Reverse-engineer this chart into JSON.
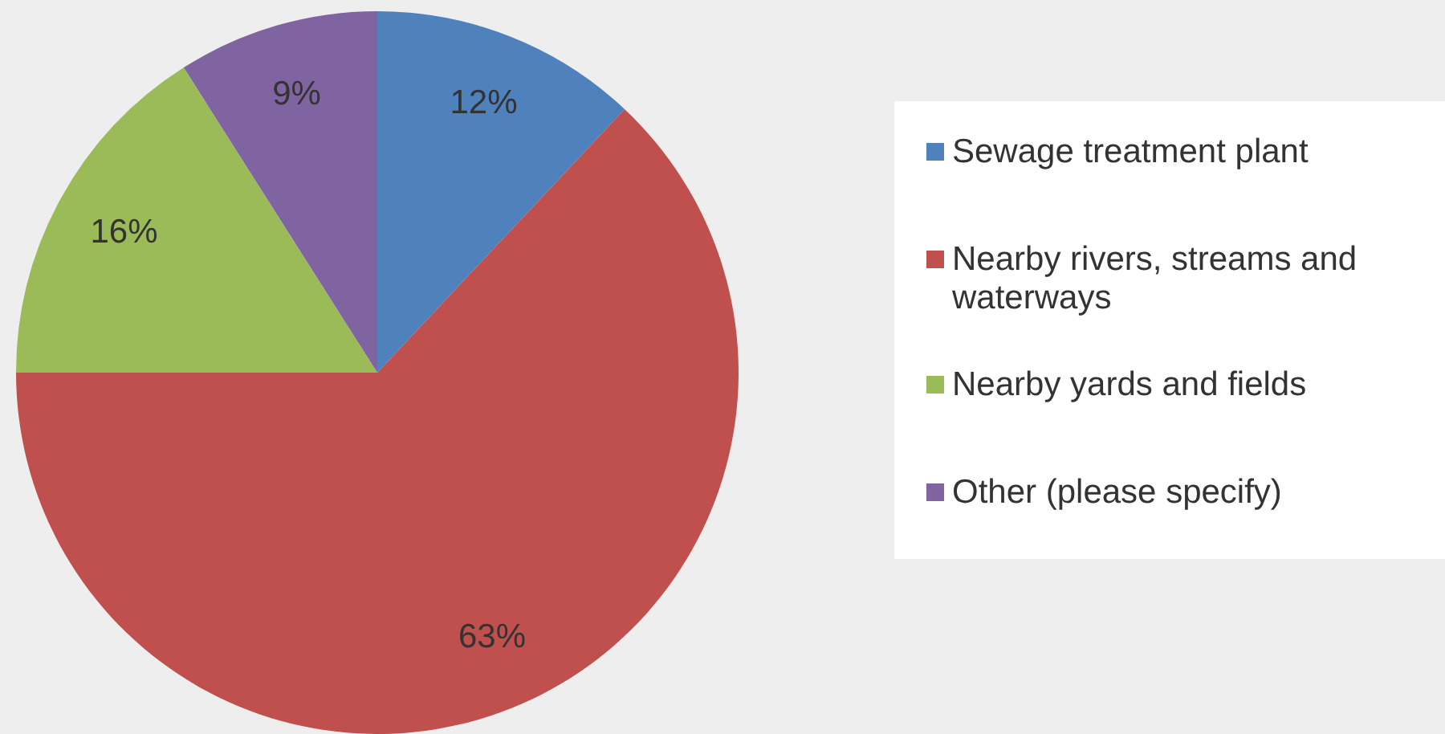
{
  "chart_data": {
    "type": "pie",
    "categories": [
      "Sewage treatment plant",
      "Nearby rivers, streams and waterways",
      "Nearby yards and fields",
      "Other (please specify)"
    ],
    "values": [
      12,
      63,
      16,
      9
    ],
    "colors": [
      "#4f81bd",
      "#c0504d",
      "#9bbb59",
      "#8064a2"
    ],
    "value_labels": [
      "12%",
      "63%",
      "16%",
      "9%"
    ],
    "legend": "right"
  }
}
